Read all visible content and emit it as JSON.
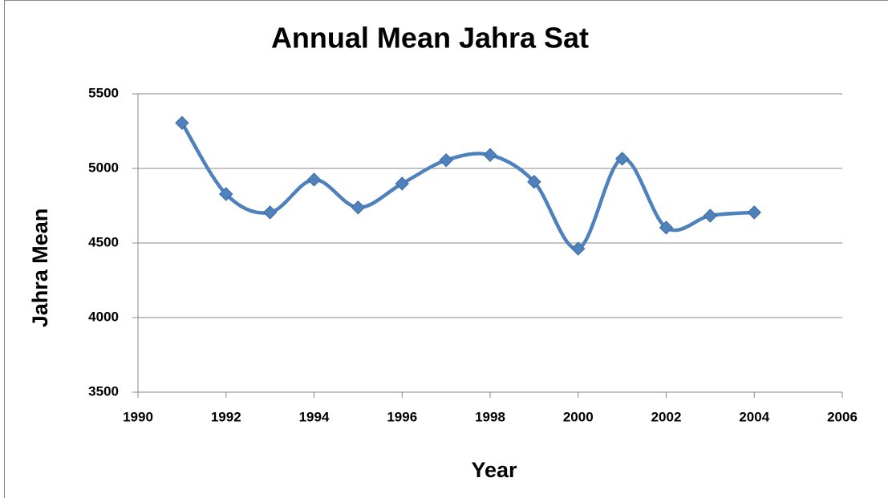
{
  "chart_data": {
    "type": "line",
    "title": "Annual Mean Jahra Sat",
    "xlabel": "Year",
    "ylabel": "Jahra Mean",
    "x": [
      1991,
      1992,
      1993,
      1994,
      1995,
      1996,
      1997,
      1998,
      1999,
      2000,
      2001,
      2002,
      2003,
      2004
    ],
    "series": [
      {
        "name": "Jahra Mean",
        "color": "#4f81bd",
        "values": [
          5305,
          4828,
          4705,
          4925,
          4738,
          4898,
          5055,
          5090,
          4910,
          4462,
          5065,
          4603,
          4683,
          4705
        ]
      }
    ],
    "xlim": [
      1990,
      2006
    ],
    "xticks": [
      1990,
      1992,
      1994,
      1996,
      1998,
      2000,
      2002,
      2004,
      2006
    ],
    "ylim": [
      3500,
      5500
    ],
    "yticks": [
      3500,
      4000,
      4500,
      5000,
      5500
    ],
    "grid": true,
    "smooth": true
  }
}
